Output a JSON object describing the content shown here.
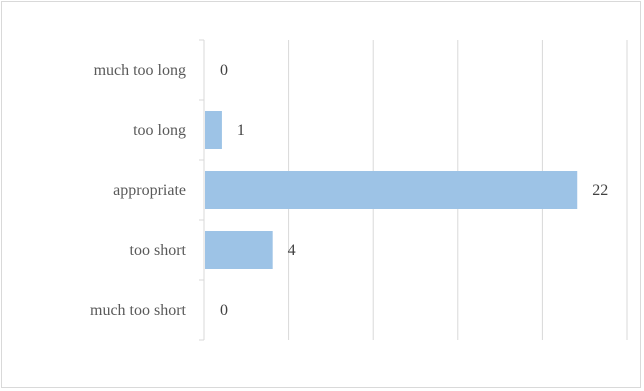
{
  "chart_data": {
    "type": "bar",
    "orientation": "horizontal",
    "categories": [
      "much too long",
      "too long",
      "appropriate",
      "too short",
      "much too short"
    ],
    "values": [
      0,
      1,
      22,
      4,
      0
    ],
    "data_labels": [
      "0",
      "1",
      "22",
      "4",
      "0"
    ],
    "xlim": [
      0,
      25
    ],
    "grid": true,
    "bar_color": "#9dc3e6",
    "gridline_color": "#d9d9d9",
    "axis_color": "#d9d9d9"
  }
}
